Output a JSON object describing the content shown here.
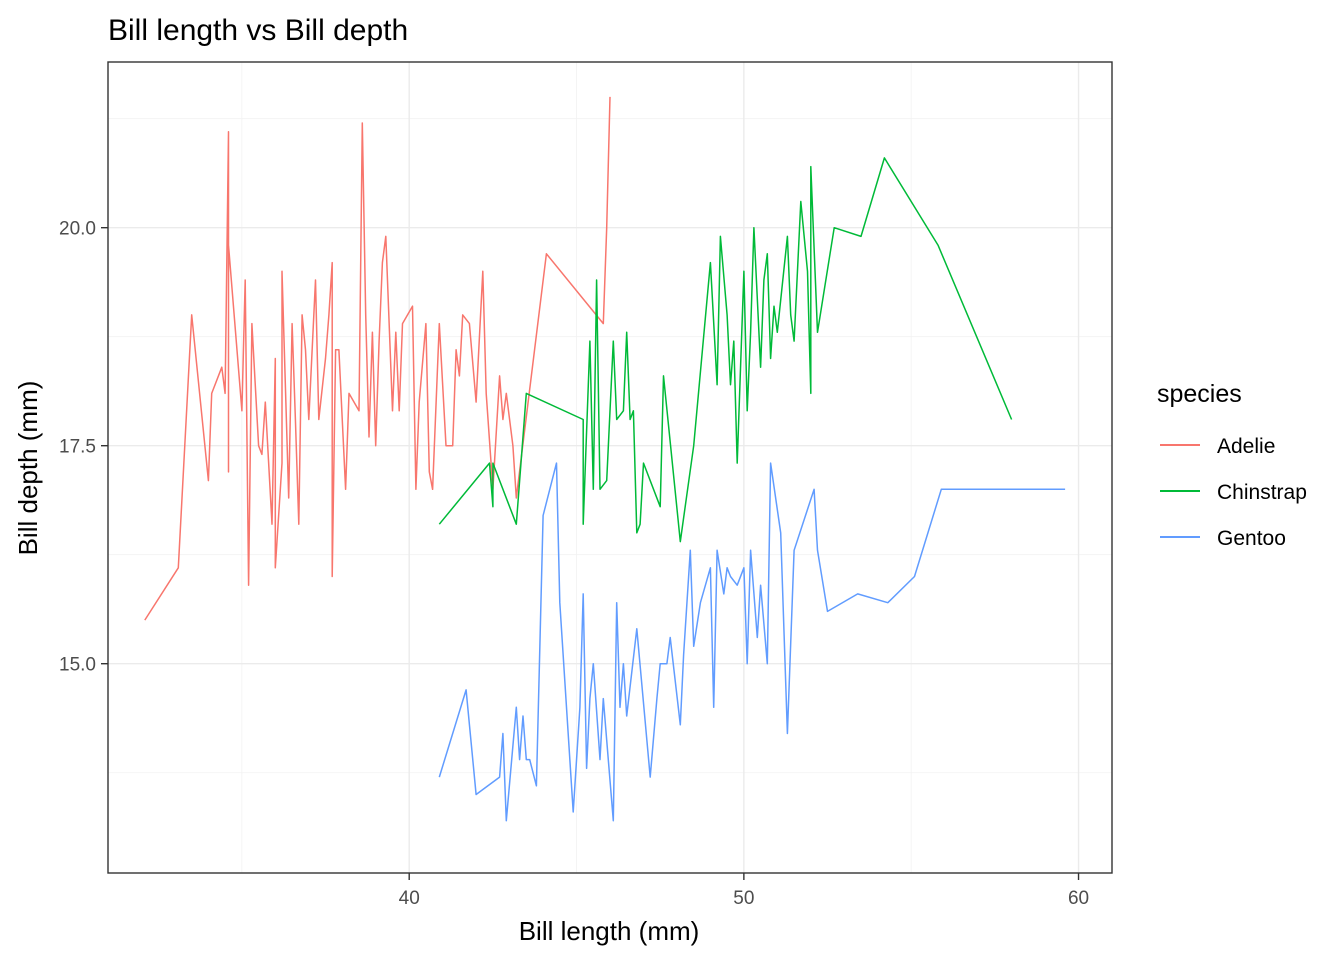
{
  "chart_data": {
    "type": "line",
    "title": "Bill length vs Bill depth",
    "xlabel": "Bill length (mm)",
    "ylabel": "Bill depth (mm)",
    "xlim": [
      31,
      61
    ],
    "ylim": [
      12.6,
      21.9
    ],
    "x_ticks": [
      40,
      50,
      60
    ],
    "x_tick_labels": [
      "40",
      "50",
      "60"
    ],
    "y_ticks": [
      15,
      17.5,
      20
    ],
    "y_tick_labels": [
      "15.0",
      "17.5",
      "20.0"
    ],
    "x_minor_ticks": [
      35,
      45,
      55
    ],
    "y_minor_ticks": [
      13.75,
      16.25,
      18.75,
      21.25
    ],
    "grid": true,
    "legend": {
      "title": "species",
      "position": "right"
    },
    "series": [
      {
        "name": "Adelie",
        "color": "#F8766D",
        "x": [
          32.1,
          33.1,
          33.5,
          34.0,
          34.1,
          34.4,
          34.5,
          34.6,
          34.6,
          34.6,
          35.0,
          35.1,
          35.2,
          35.3,
          35.5,
          35.6,
          35.7,
          35.9,
          36.0,
          36.0,
          36.2,
          36.2,
          36.4,
          36.5,
          36.6,
          36.7,
          36.8,
          36.9,
          37.0,
          37.2,
          37.3,
          37.5,
          37.6,
          37.7,
          37.7,
          37.8,
          37.9,
          38.1,
          38.2,
          38.5,
          38.6,
          38.7,
          38.8,
          38.9,
          39.0,
          39.1,
          39.2,
          39.3,
          39.5,
          39.6,
          39.7,
          39.8,
          40.1,
          40.2,
          40.3,
          40.5,
          40.6,
          40.7,
          40.9,
          41.1,
          41.3,
          41.4,
          41.5,
          41.6,
          41.8,
          42.0,
          42.2,
          42.3,
          42.5,
          42.7,
          42.8,
          42.9,
          43.1,
          43.2,
          44.1,
          45.8,
          45.9,
          46.0
        ],
        "y": [
          15.5,
          16.1,
          19.0,
          17.1,
          18.1,
          18.4,
          18.1,
          21.1,
          17.2,
          19.8,
          17.9,
          19.4,
          15.9,
          18.9,
          17.5,
          17.4,
          18.0,
          16.6,
          18.5,
          16.1,
          17.3,
          19.5,
          16.9,
          18.9,
          17.8,
          16.6,
          19.0,
          18.6,
          17.8,
          19.4,
          17.8,
          18.5,
          19.0,
          19.6,
          16.0,
          18.6,
          18.6,
          17.0,
          18.1,
          17.9,
          21.2,
          19.0,
          17.6,
          18.8,
          17.5,
          18.7,
          19.6,
          19.9,
          17.9,
          18.8,
          17.9,
          18.9,
          19.1,
          17.0,
          18.0,
          18.9,
          17.2,
          17.0,
          18.9,
          17.5,
          17.5,
          18.6,
          18.3,
          19.0,
          18.9,
          18.0,
          19.5,
          18.1,
          17.0,
          18.3,
          17.8,
          18.1,
          17.5,
          16.9,
          19.7,
          18.9,
          20.0,
          21.5
        ]
      },
      {
        "name": "Chinstrap",
        "color": "#00BA38",
        "x": [
          40.9,
          42.4,
          42.5,
          42.5,
          43.2,
          43.5,
          45.2,
          45.2,
          45.4,
          45.5,
          45.6,
          45.7,
          45.9,
          46.1,
          46.2,
          46.4,
          46.5,
          46.6,
          46.7,
          46.8,
          46.9,
          47.0,
          47.5,
          47.6,
          48.1,
          48.5,
          49.0,
          49.2,
          49.3,
          49.5,
          49.6,
          49.7,
          49.8,
          50.0,
          50.1,
          50.2,
          50.3,
          50.5,
          50.6,
          50.7,
          50.8,
          50.9,
          51.0,
          51.3,
          51.4,
          51.5,
          51.7,
          51.9,
          52.0,
          52.0,
          52.2,
          52.7,
          53.5,
          54.2,
          55.8,
          58.0
        ],
        "y": [
          16.6,
          17.3,
          16.8,
          17.3,
          16.6,
          18.1,
          17.8,
          16.6,
          18.7,
          17.0,
          19.4,
          17.0,
          17.1,
          18.7,
          17.8,
          17.9,
          18.8,
          17.8,
          17.9,
          16.5,
          16.6,
          17.3,
          16.8,
          18.3,
          16.4,
          17.5,
          19.6,
          18.2,
          19.9,
          19.0,
          18.2,
          18.7,
          17.3,
          19.5,
          17.9,
          18.8,
          20.0,
          18.4,
          19.4,
          19.7,
          18.5,
          19.1,
          18.8,
          19.9,
          19.0,
          18.7,
          20.3,
          19.5,
          18.1,
          20.7,
          18.8,
          20.0,
          19.9,
          20.8,
          19.8,
          17.8
        ]
      },
      {
        "name": "Gentoo",
        "color": "#619CFF",
        "x": [
          40.9,
          41.7,
          42.0,
          42.7,
          42.8,
          42.9,
          43.2,
          43.3,
          43.4,
          43.5,
          43.6,
          43.8,
          44.0,
          44.4,
          44.5,
          44.9,
          45.1,
          45.2,
          45.3,
          45.4,
          45.5,
          45.7,
          45.8,
          46.1,
          46.2,
          46.3,
          46.4,
          46.5,
          46.8,
          47.2,
          47.4,
          47.5,
          47.7,
          47.8,
          48.1,
          48.2,
          48.4,
          48.5,
          48.7,
          49.0,
          49.1,
          49.2,
          49.4,
          49.5,
          49.6,
          49.8,
          50.0,
          50.1,
          50.2,
          50.4,
          50.5,
          50.7,
          50.8,
          51.1,
          51.3,
          51.5,
          52.1,
          52.2,
          52.5,
          53.4,
          54.3,
          55.1,
          55.9,
          59.6
        ],
        "y": [
          13.7,
          14.7,
          13.5,
          13.7,
          14.2,
          13.2,
          14.5,
          13.9,
          14.4,
          13.9,
          13.9,
          13.6,
          16.7,
          17.3,
          15.7,
          13.3,
          14.5,
          15.8,
          13.8,
          14.6,
          15.0,
          13.9,
          14.6,
          13.2,
          15.7,
          14.5,
          15.0,
          14.4,
          15.4,
          13.7,
          14.6,
          15.0,
          15.0,
          15.3,
          14.3,
          15.1,
          16.3,
          15.2,
          15.7,
          16.1,
          14.5,
          16.3,
          15.8,
          16.1,
          16.0,
          15.9,
          16.1,
          15.0,
          16.3,
          15.3,
          15.9,
          15.0,
          17.3,
          16.5,
          14.2,
          16.3,
          17.0,
          16.3,
          15.6,
          15.8,
          15.7,
          16.0,
          17.0,
          17.0
        ]
      }
    ]
  }
}
